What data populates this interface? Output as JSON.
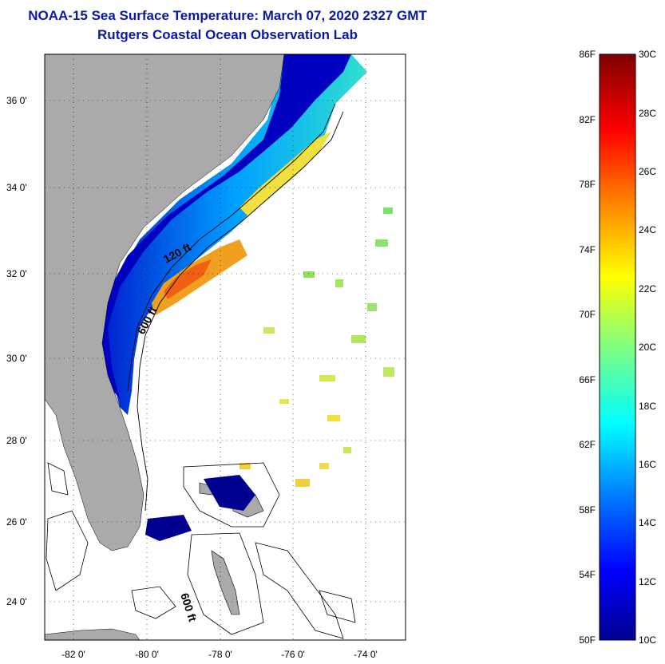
{
  "title": "NOAA-15 Sea Surface Temperature:  March 07, 2020 2327 GMT",
  "subtitle": "Rutgers Coastal Ocean Observation Lab",
  "map": {
    "lat_labels": [
      "36 0'",
      "34 0'",
      "32 0'",
      "30 0'",
      "28 0'",
      "26 0'",
      "24 0'"
    ],
    "lon_labels": [
      "-82 0'",
      "-80 0'",
      "-78 0'",
      "-76 0'",
      "-74 0'"
    ],
    "contour_labels": {
      "shelf_120": "120 ft",
      "shelf_600": "600 ft",
      "bahamas_600": "600 ft"
    },
    "colors": {
      "land": "#aaaaaa",
      "water_fill": "#ffffff"
    }
  },
  "colorbar": {
    "fahrenheit_labels": [
      "86F",
      "82F",
      "78F",
      "74F",
      "70F",
      "66F",
      "62F",
      "58F",
      "54F",
      "50F"
    ],
    "celsius_labels": [
      "30C",
      "28C",
      "26C",
      "24C",
      "22C",
      "20C",
      "18C",
      "16C",
      "14C",
      "12C",
      "10C"
    ],
    "range_c": [
      10,
      30
    ],
    "range_f": [
      50,
      86
    ],
    "colors": [
      "#00008f",
      "#0000ff",
      "#0080ff",
      "#00ffff",
      "#80ff80",
      "#ffff00",
      "#ff8000",
      "#ff0000",
      "#800000"
    ]
  }
}
